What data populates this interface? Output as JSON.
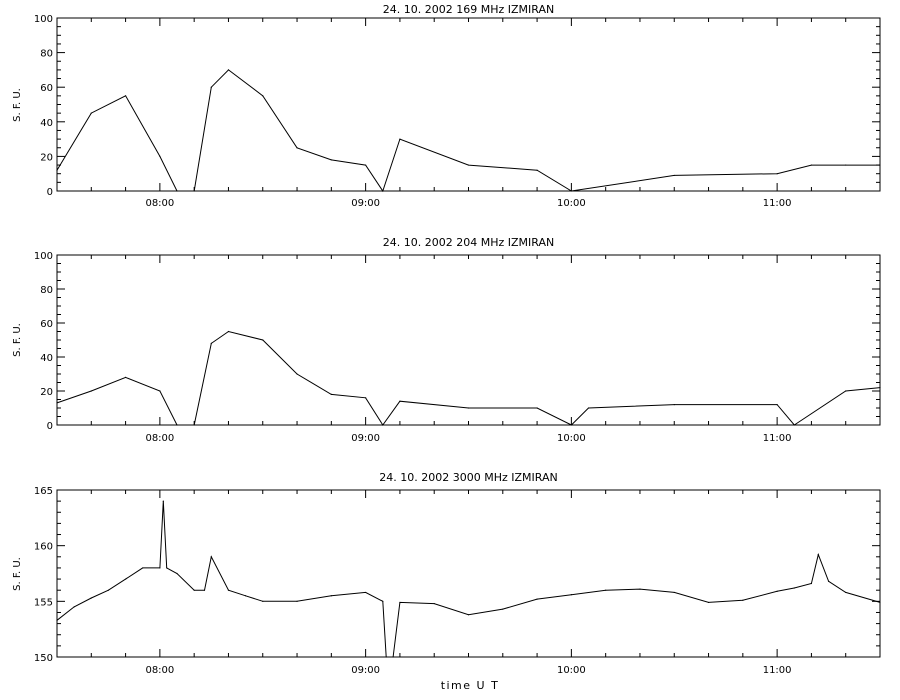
{
  "xlabel": "time U T",
  "chart_data": [
    {
      "type": "line",
      "title": "24. 10. 2002 169 MHz IZMIRAN",
      "ylabel": "S. F. U.",
      "xlim": [
        "07:30",
        "11:30"
      ],
      "ylim": [
        0,
        100
      ],
      "xticks": [
        "08:00",
        "09:00",
        "10:00",
        "11:00"
      ],
      "yticks": [
        0,
        20,
        40,
        60,
        80,
        100
      ],
      "grid": false,
      "series": [
        {
          "x": [
            "07:30",
            "07:40",
            "07:50",
            "08:00",
            "08:05",
            "08:10",
            "08:15",
            "08:20",
            "08:30",
            "08:40",
            "08:50",
            "09:00",
            "09:05",
            "09:10",
            "09:30",
            "09:50",
            "10:00",
            "10:30",
            "11:00",
            "11:10",
            "11:20",
            "11:30"
          ],
          "y": [
            12,
            45,
            55,
            20,
            0,
            0,
            60,
            70,
            55,
            25,
            18,
            15,
            0,
            30,
            15,
            12,
            0,
            9,
            10,
            15,
            15,
            15
          ]
        }
      ]
    },
    {
      "type": "line",
      "title": "24. 10. 2002 204 MHz IZMIRAN",
      "ylabel": "S. F. U.",
      "xlim": [
        "07:30",
        "11:30"
      ],
      "ylim": [
        0,
        100
      ],
      "xticks": [
        "08:00",
        "09:00",
        "10:00",
        "11:00"
      ],
      "yticks": [
        0,
        20,
        40,
        60,
        80,
        100
      ],
      "grid": false,
      "series": [
        {
          "x": [
            "07:30",
            "07:40",
            "07:50",
            "08:00",
            "08:05",
            "08:10",
            "08:15",
            "08:20",
            "08:30",
            "08:40",
            "08:50",
            "09:00",
            "09:05",
            "09:10",
            "09:30",
            "09:50",
            "10:00",
            "10:05",
            "10:30",
            "11:00",
            "11:05",
            "11:20",
            "11:30"
          ],
          "y": [
            13,
            20,
            28,
            20,
            0,
            0,
            48,
            55,
            50,
            30,
            18,
            16,
            0,
            14,
            10,
            10,
            0,
            10,
            12,
            12,
            0,
            20,
            22
          ]
        }
      ]
    },
    {
      "type": "line",
      "title": "24. 10. 2002 3000 MHz IZMIRAN",
      "ylabel": "S. F. U.",
      "xlim": [
        "07:30",
        "11:30"
      ],
      "ylim": [
        150,
        165
      ],
      "xticks": [
        "08:00",
        "09:00",
        "10:00",
        "11:00"
      ],
      "yticks": [
        150,
        155,
        160,
        165
      ],
      "grid": false,
      "series": [
        {
          "x": [
            "07:30",
            "07:35",
            "07:40",
            "07:45",
            "07:50",
            "07:55",
            "08:00",
            "08:01",
            "08:02",
            "08:05",
            "08:10",
            "08:13",
            "08:15",
            "08:20",
            "08:25",
            "08:30",
            "08:40",
            "08:50",
            "09:00",
            "09:05",
            "09:06",
            "09:08",
            "09:10",
            "09:20",
            "09:30",
            "09:40",
            "09:50",
            "10:00",
            "10:10",
            "10:20",
            "10:30",
            "10:40",
            "10:50",
            "11:00",
            "11:05",
            "11:10",
            "11:12",
            "11:15",
            "11:20",
            "11:30"
          ],
          "y": [
            153.3,
            154.5,
            155.3,
            156,
            157,
            158,
            158,
            164,
            158,
            157.5,
            156,
            156,
            159,
            156,
            155.5,
            155,
            155,
            155.5,
            155.8,
            155,
            150,
            150,
            154.9,
            154.8,
            153.8,
            154.3,
            155.2,
            155.6,
            156,
            156.1,
            155.8,
            154.9,
            155.1,
            155.9,
            156.2,
            156.6,
            159.2,
            156.8,
            155.8,
            154.9
          ]
        }
      ]
    }
  ]
}
